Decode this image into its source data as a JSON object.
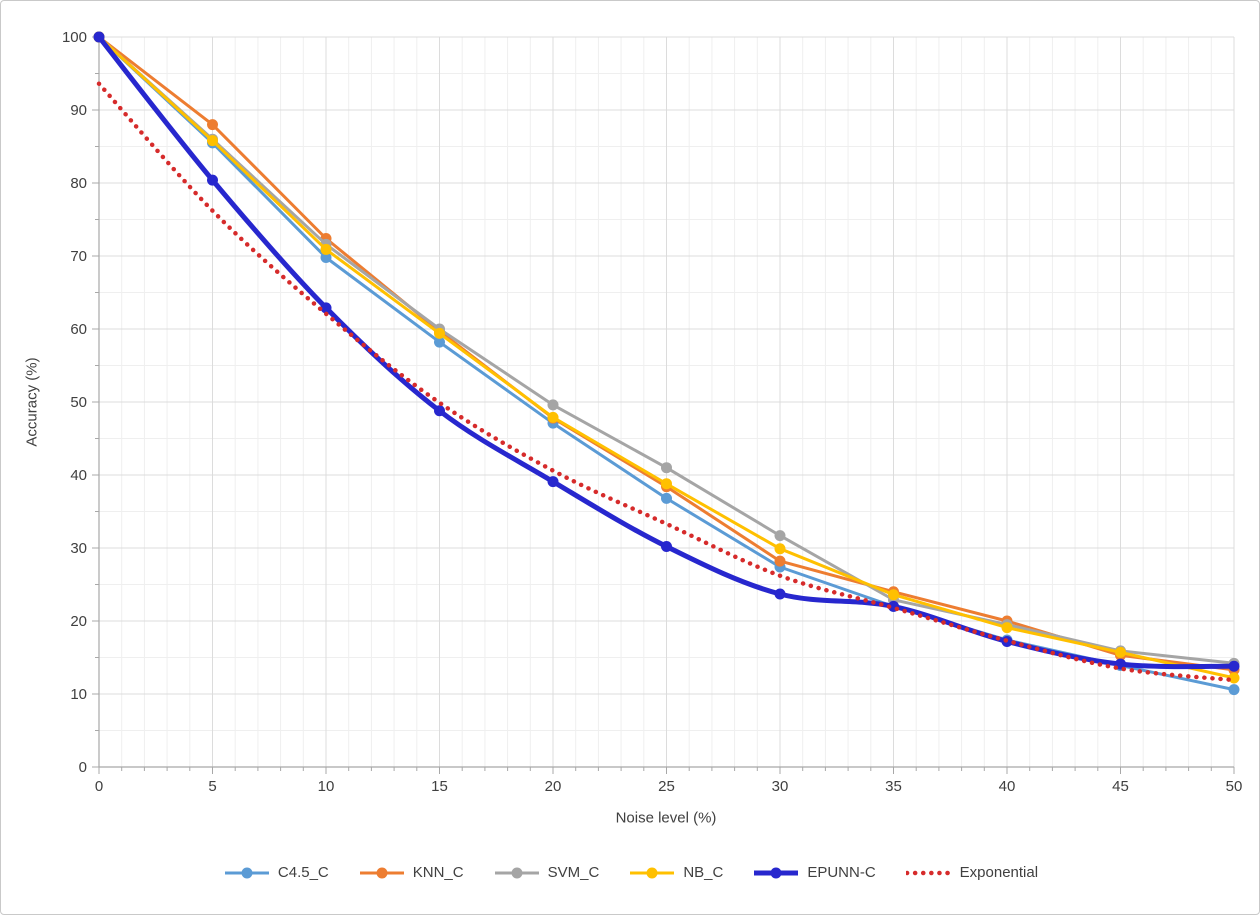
{
  "frame": {
    "background_color": "#ffffff",
    "border_color": "#c9c9c9"
  },
  "colors": {
    "major_gridline": "#dcdcdc",
    "minor_gridline": "#efefef",
    "axis_line": "#a8a8a8",
    "text": "#404040"
  },
  "chart_data": {
    "type": "line",
    "title": "",
    "xlabel": "Noise level (%)",
    "ylabel": "Accuracy (%)",
    "xlim": [
      0,
      50
    ],
    "ylim": [
      0,
      100
    ],
    "x_ticks": [
      0,
      5,
      10,
      15,
      20,
      25,
      30,
      35,
      40,
      45,
      50
    ],
    "y_ticks": [
      0,
      10,
      20,
      30,
      40,
      50,
      60,
      70,
      80,
      90,
      100
    ],
    "x_minor_step": 1,
    "y_minor_step": 5,
    "grid": "major and minor gridlines, light gray",
    "legend_position": "bottom",
    "x": [
      0,
      5,
      10,
      15,
      20,
      25,
      30,
      35,
      40,
      45,
      50
    ],
    "series": [
      {
        "name": "C4.5_C",
        "color": "#5B9BD5",
        "marker": "circle",
        "line_width": 3,
        "smooth": false,
        "dashed": false,
        "values": [
          100,
          85.5,
          69.8,
          58.2,
          47.1,
          36.8,
          27.4,
          22.0,
          17.4,
          13.9,
          10.6
        ]
      },
      {
        "name": "KNN_C",
        "color": "#ED7D31",
        "marker": "circle",
        "line_width": 3,
        "smooth": false,
        "dashed": false,
        "values": [
          100,
          88.0,
          72.4,
          59.7,
          47.8,
          38.4,
          28.2,
          24.0,
          20.0,
          15.3,
          13.3
        ]
      },
      {
        "name": "SVM_C",
        "color": "#A5A5A5",
        "marker": "circle",
        "line_width": 3,
        "smooth": false,
        "dashed": false,
        "values": [
          100,
          86.0,
          71.6,
          60.0,
          49.6,
          41.0,
          31.7,
          22.9,
          19.5,
          15.9,
          14.2
        ]
      },
      {
        "name": "NB_C",
        "color": "#FFC000",
        "marker": "circle",
        "line_width": 3,
        "smooth": false,
        "dashed": false,
        "values": [
          100,
          85.8,
          70.9,
          59.4,
          47.9,
          38.8,
          29.9,
          23.6,
          19.1,
          15.7,
          12.2
        ]
      },
      {
        "name": "EPUNN-C",
        "color": "#2727CE",
        "marker": "circle",
        "line_width": 5,
        "smooth": true,
        "dashed": false,
        "values": [
          100,
          80.4,
          62.9,
          48.8,
          39.1,
          30.2,
          23.7,
          22.0,
          17.2,
          14.1,
          13.8
        ]
      },
      {
        "name": "Exponential",
        "color": "#D62B2B",
        "marker": "none",
        "line_width": 4.5,
        "smooth": true,
        "dashed": true,
        "values": [
          93.6,
          76.2,
          62.1,
          49.9,
          40.6,
          33.3,
          26.2,
          21.8,
          17.3,
          13.5,
          11.9
        ]
      }
    ]
  }
}
